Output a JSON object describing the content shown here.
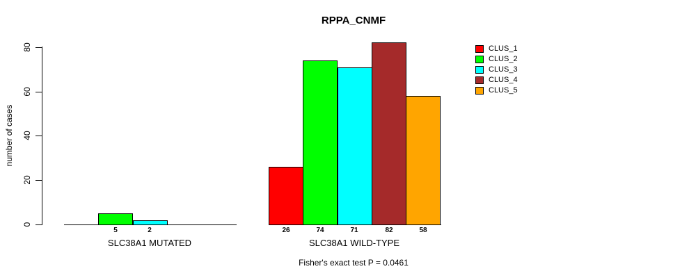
{
  "chart_data": {
    "type": "bar",
    "title": "RPPA_CNMF",
    "ylabel": "number of cases",
    "xlabel": "",
    "ylim": [
      0,
      80
    ],
    "yticks": [
      0,
      20,
      40,
      60,
      80
    ],
    "grid": false,
    "legend_position": "top-right",
    "zero_bars_hidden": true,
    "categories": [
      "SLC38A1 MUTATED",
      "SLC38A1 WILD-TYPE"
    ],
    "series": [
      {
        "name": "CLUS_1",
        "color": "#FF0000",
        "values": [
          0,
          26
        ]
      },
      {
        "name": "CLUS_2",
        "color": "#00FF00",
        "values": [
          5,
          74
        ]
      },
      {
        "name": "CLUS_3",
        "color": "#00FFFF",
        "values": [
          2,
          71
        ]
      },
      {
        "name": "CLUS_4",
        "color": "#A52A2A",
        "values": [
          0,
          82
        ]
      },
      {
        "name": "CLUS_5",
        "color": "#FFA500",
        "values": [
          0,
          58
        ]
      }
    ],
    "bar_value_labels": {
      "SLC38A1 MUTATED": [
        "5",
        "2"
      ],
      "SLC38A1 WILD-TYPE": [
        "26",
        "74",
        "71",
        "82",
        "58"
      ]
    },
    "annotation": "Fisher's exact test P = 0.0461"
  },
  "colors": {
    "axis": "#000000",
    "background": "#FFFFFF",
    "text": "#000000"
  }
}
